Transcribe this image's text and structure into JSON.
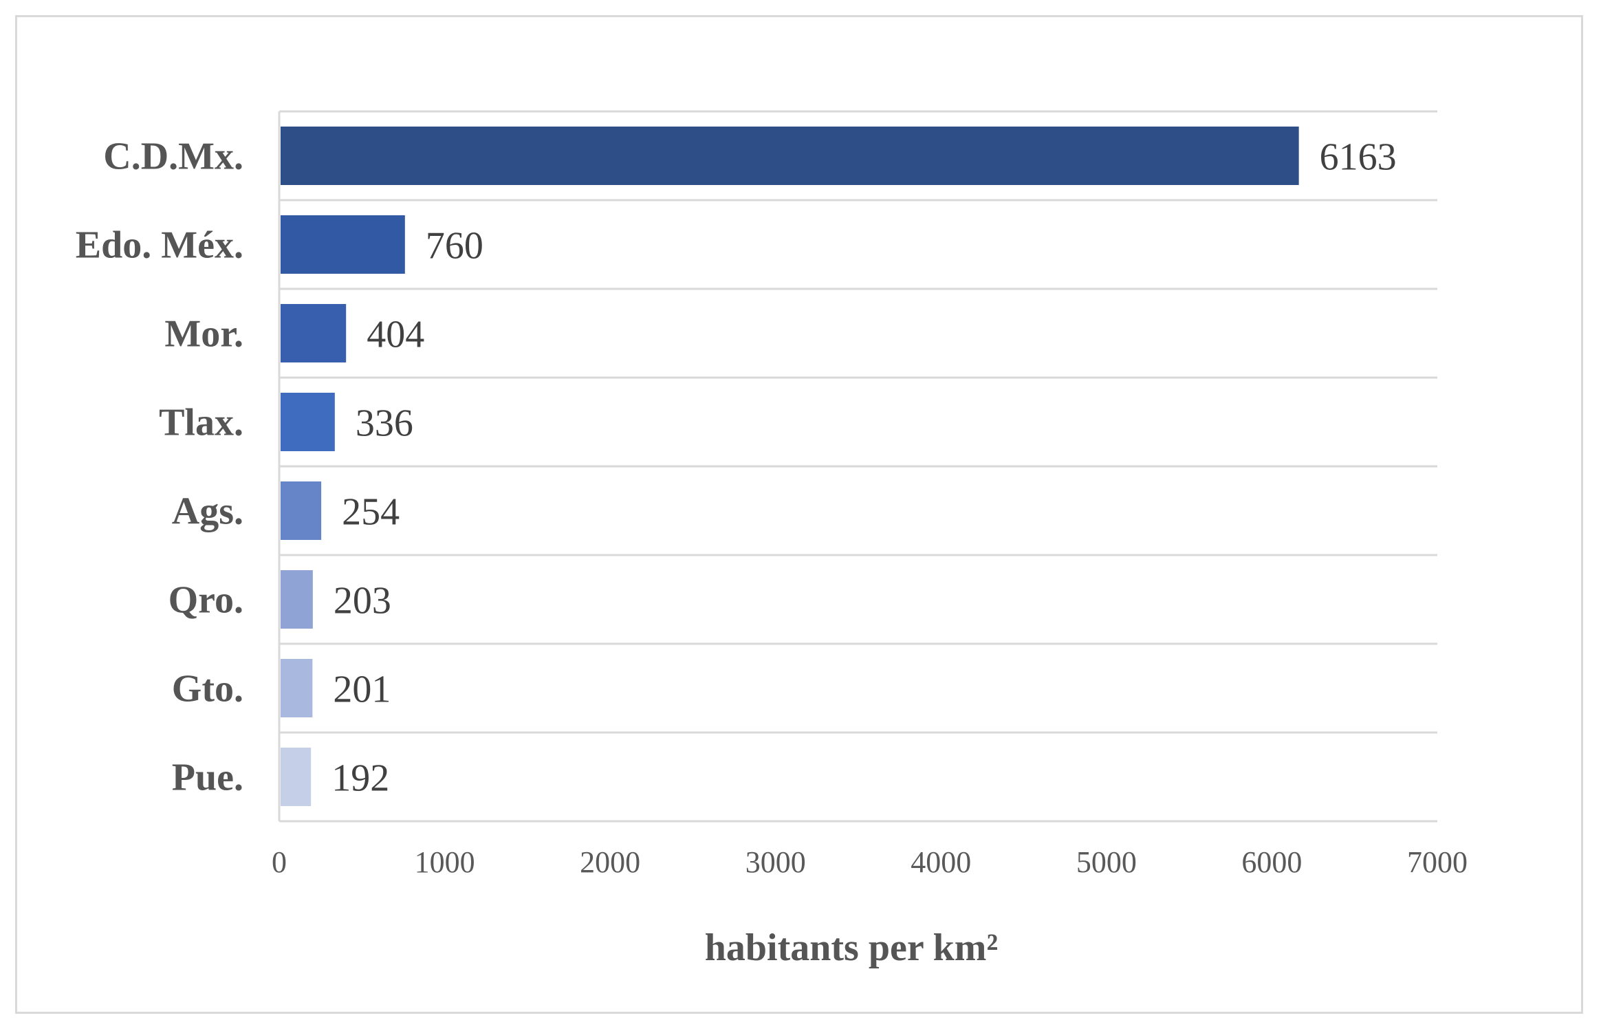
{
  "chart_data": {
    "type": "bar",
    "orientation": "horizontal",
    "categories": [
      "C.D.Mx.",
      "Edo. Méx.",
      "Mor.",
      "Tlax.",
      "Ags.",
      "Qro.",
      "Gto.",
      "Pue."
    ],
    "values": [
      6163,
      760,
      404,
      336,
      254,
      203,
      201,
      192
    ],
    "data_labels": [
      "6163",
      "760",
      "404",
      "336",
      "254",
      "203",
      "201",
      "192"
    ],
    "bar_colors": [
      "#2e4e87",
      "#3259a3",
      "#375fae",
      "#3f6cbf",
      "#6685c9",
      "#8fa4d4",
      "#a9b8de",
      "#c5cfe8"
    ],
    "title": "",
    "xlabel": "habitants per km²",
    "ylabel": "",
    "xlim": [
      0,
      7000
    ],
    "xticks": [
      0,
      1000,
      2000,
      3000,
      4000,
      5000,
      6000,
      7000
    ],
    "xtick_labels": [
      "0",
      "1000",
      "2000",
      "3000",
      "4000",
      "5000",
      "6000",
      "7000"
    ],
    "grid": "horizontal separators between categories",
    "legend": "none"
  }
}
